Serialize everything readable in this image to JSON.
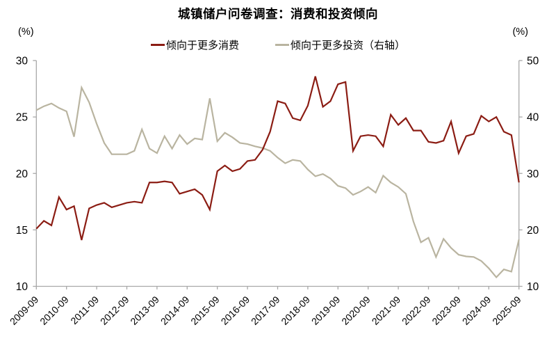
{
  "chart_data": {
    "type": "line",
    "title": "城镇储户问卷调查：消费和投资倾向",
    "unit_label_left": "(%)",
    "unit_label_right": "(%)",
    "legend_position": "top-center",
    "grid": false,
    "axis_color": "#a8a8a8",
    "text_color": "#000000",
    "x": [
      "2009-09",
      "2009-12",
      "2010-03",
      "2010-06",
      "2010-09",
      "2010-12",
      "2011-03",
      "2011-06",
      "2011-09",
      "2011-12",
      "2012-03",
      "2012-06",
      "2012-09",
      "2012-12",
      "2013-03",
      "2013-06",
      "2013-09",
      "2013-12",
      "2014-03",
      "2014-06",
      "2014-09",
      "2014-12",
      "2015-03",
      "2015-06",
      "2015-09",
      "2015-12",
      "2016-03",
      "2016-06",
      "2016-09",
      "2016-12",
      "2017-03",
      "2017-06",
      "2017-09",
      "2017-12",
      "2018-03",
      "2018-06",
      "2018-09",
      "2018-12",
      "2019-03",
      "2019-06",
      "2019-09",
      "2019-12",
      "2020-03",
      "2020-06",
      "2020-09",
      "2020-12",
      "2021-03",
      "2021-06",
      "2021-09",
      "2021-12",
      "2022-03",
      "2022-06",
      "2022-09",
      "2022-12",
      "2023-03",
      "2023-06",
      "2023-09",
      "2023-12",
      "2024-03",
      "2024-06",
      "2024-09",
      "2024-12",
      "2025-03",
      "2025-06",
      "2025-09"
    ],
    "x_tick_labels": [
      "2009-09",
      "2010-09",
      "2011-09",
      "2012-09",
      "2013-09",
      "2014-09",
      "2015-09",
      "2016-09",
      "2017-09",
      "2018-09",
      "2019-09",
      "2020-09",
      "2021-09",
      "2022-09",
      "2023-09",
      "2024-09",
      "2025-09"
    ],
    "left_axis": {
      "min": 10,
      "max": 30,
      "ticks": [
        30,
        25,
        20,
        15,
        10
      ]
    },
    "right_axis": {
      "min": 10,
      "max": 50,
      "ticks": [
        50,
        40,
        30,
        20,
        10
      ]
    },
    "series": [
      {
        "name": "倾向于更多消费",
        "axis": "left",
        "color": "#8b1c13",
        "values": [
          15.1,
          15.8,
          15.4,
          17.9,
          16.8,
          17.1,
          14.1,
          16.9,
          17.2,
          17.4,
          17.0,
          17.2,
          17.4,
          17.5,
          17.4,
          19.2,
          19.2,
          19.3,
          19.2,
          18.2,
          18.4,
          18.6,
          18.1,
          16.8,
          20.2,
          20.7,
          20.2,
          20.4,
          21.1,
          21.2,
          22.1,
          23.7,
          26.4,
          26.2,
          24.9,
          24.7,
          26.0,
          28.6,
          25.9,
          26.4,
          27.9,
          28.1,
          22.0,
          23.3,
          23.4,
          23.3,
          22.4,
          25.2,
          24.3,
          24.9,
          23.8,
          23.8,
          22.8,
          22.7,
          22.9,
          24.6,
          21.8,
          23.3,
          23.5,
          25.1,
          24.6,
          25.0,
          23.7,
          23.4,
          19.2
        ]
      },
      {
        "name": "倾向于更多投资（右轴）",
        "axis": "right",
        "color": "#b9b4a0",
        "values": [
          41.2,
          41.9,
          42.4,
          41.6,
          41.0,
          36.5,
          45.2,
          42.6,
          38.8,
          35.4,
          33.4,
          33.4,
          33.4,
          34.0,
          37.8,
          34.4,
          33.6,
          36.6,
          34.4,
          36.8,
          35.2,
          36.2,
          36.0,
          43.3,
          35.7,
          37.2,
          36.4,
          35.4,
          35.2,
          34.8,
          34.5,
          34.0,
          32.8,
          31.8,
          32.4,
          32.2,
          30.7,
          29.5,
          29.9,
          29.1,
          27.8,
          27.4,
          26.2,
          26.8,
          27.6,
          26.6,
          29.6,
          28.4,
          27.6,
          26.4,
          21.5,
          17.8,
          18.6,
          15.2,
          18.4,
          16.8,
          15.6,
          15.3,
          15.2,
          14.5,
          13.2,
          11.6,
          13.0,
          12.6,
          18.3
        ]
      }
    ]
  }
}
